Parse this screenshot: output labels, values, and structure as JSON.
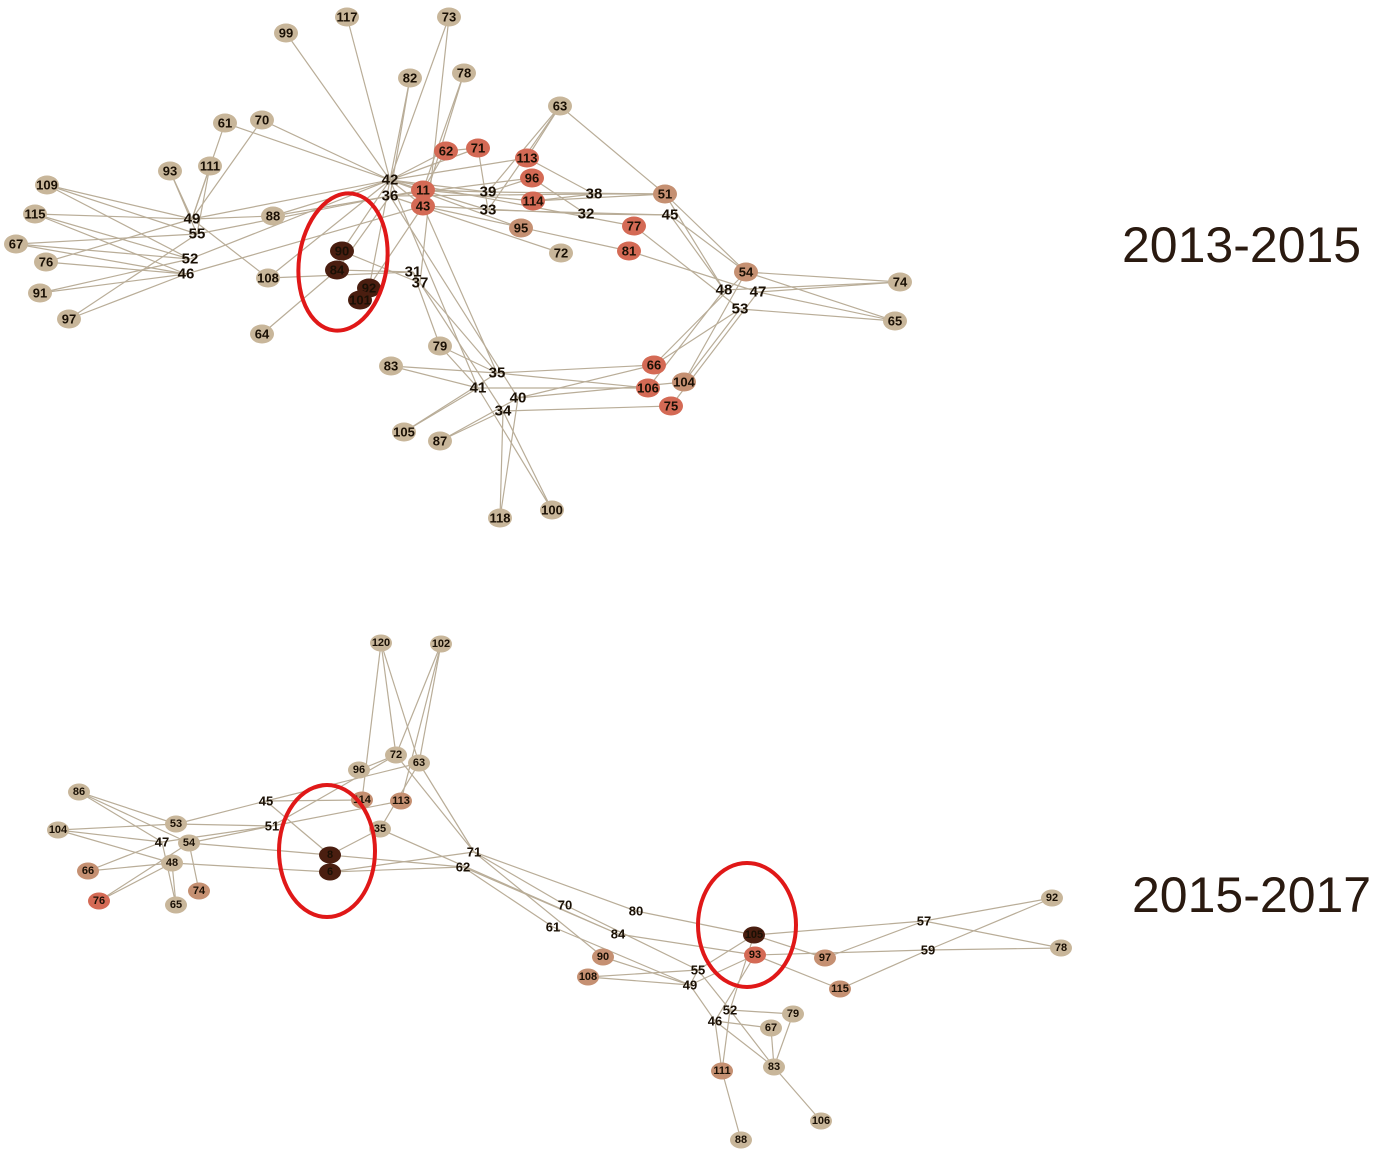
{
  "colors": {
    "edge": "#b9ad98",
    "node_light": "#c8b69a",
    "node_mid": "#c59072",
    "node_red": "#d46a55",
    "node_dark": "#4a1e10",
    "highlight": "#e01818",
    "label": "#2a1a10"
  },
  "panels": [
    {
      "label": "2013-2015",
      "nodes": [
        {
          "id": "117",
          "c": "light"
        },
        {
          "id": "73",
          "c": "light"
        },
        {
          "id": "99",
          "c": "light"
        },
        {
          "id": "82",
          "c": "light"
        },
        {
          "id": "78",
          "c": "light"
        },
        {
          "id": "63",
          "c": "light"
        },
        {
          "id": "61",
          "c": "light"
        },
        {
          "id": "70",
          "c": "light"
        },
        {
          "id": "62",
          "c": "red"
        },
        {
          "id": "71",
          "c": "red"
        },
        {
          "id": "113",
          "c": "red"
        },
        {
          "id": "93",
          "c": "light"
        },
        {
          "id": "111",
          "c": "light"
        },
        {
          "id": "109",
          "c": "light"
        },
        {
          "id": "96",
          "c": "red"
        },
        {
          "id": "42",
          "c": "none"
        },
        {
          "id": "36",
          "c": "none"
        },
        {
          "id": "11",
          "c": "red"
        },
        {
          "id": "43",
          "c": "red"
        },
        {
          "id": "39",
          "c": "none"
        },
        {
          "id": "33",
          "c": "none"
        },
        {
          "id": "114",
          "c": "red"
        },
        {
          "id": "38",
          "c": "none"
        },
        {
          "id": "51",
          "c": "mid"
        },
        {
          "id": "115",
          "c": "light"
        },
        {
          "id": "49",
          "c": "none"
        },
        {
          "id": "55",
          "c": "none"
        },
        {
          "id": "88",
          "c": "light"
        },
        {
          "id": "32",
          "c": "none"
        },
        {
          "id": "45",
          "c": "none"
        },
        {
          "id": "67",
          "c": "light"
        },
        {
          "id": "95",
          "c": "mid"
        },
        {
          "id": "77",
          "c": "red"
        },
        {
          "id": "90",
          "c": "dark"
        },
        {
          "id": "76",
          "c": "light"
        },
        {
          "id": "52",
          "c": "none"
        },
        {
          "id": "72",
          "c": "light"
        },
        {
          "id": "81",
          "c": "red"
        },
        {
          "id": "84",
          "c": "dark"
        },
        {
          "id": "46",
          "c": "none"
        },
        {
          "id": "108",
          "c": "light"
        },
        {
          "id": "54",
          "c": "mid"
        },
        {
          "id": "31",
          "c": "none"
        },
        {
          "id": "37",
          "c": "none"
        },
        {
          "id": "74",
          "c": "light"
        },
        {
          "id": "91",
          "c": "light"
        },
        {
          "id": "92",
          "c": "dark"
        },
        {
          "id": "48",
          "c": "none"
        },
        {
          "id": "47",
          "c": "none"
        },
        {
          "id": "101",
          "c": "dark"
        },
        {
          "id": "53",
          "c": "none"
        },
        {
          "id": "97",
          "c": "light"
        },
        {
          "id": "65",
          "c": "light"
        },
        {
          "id": "64",
          "c": "light"
        },
        {
          "id": "79",
          "c": "light"
        },
        {
          "id": "83",
          "c": "light"
        },
        {
          "id": "66",
          "c": "red"
        },
        {
          "id": "35",
          "c": "none"
        },
        {
          "id": "41",
          "c": "none"
        },
        {
          "id": "106",
          "c": "red"
        },
        {
          "id": "104",
          "c": "mid"
        },
        {
          "id": "40",
          "c": "none"
        },
        {
          "id": "75",
          "c": "red"
        },
        {
          "id": "34",
          "c": "none"
        },
        {
          "id": "105",
          "c": "light"
        },
        {
          "id": "87",
          "c": "light"
        },
        {
          "id": "118",
          "c": "light"
        },
        {
          "id": "100",
          "c": "light"
        }
      ]
    },
    {
      "label": "2015-2017",
      "nodes": [
        {
          "id": "120",
          "c": "light"
        },
        {
          "id": "102",
          "c": "light"
        },
        {
          "id": "72",
          "c": "light"
        },
        {
          "id": "63",
          "c": "light"
        },
        {
          "id": "86",
          "c": "light"
        },
        {
          "id": "96",
          "c": "light"
        },
        {
          "id": "114",
          "c": "mid"
        },
        {
          "id": "113",
          "c": "mid"
        },
        {
          "id": "45",
          "c": "none"
        },
        {
          "id": "53",
          "c": "light"
        },
        {
          "id": "51",
          "c": "none"
        },
        {
          "id": "35",
          "c": "light"
        },
        {
          "id": "104",
          "c": "light"
        },
        {
          "id": "47",
          "c": "none"
        },
        {
          "id": "54",
          "c": "light"
        },
        {
          "id": "71",
          "c": "none"
        },
        {
          "id": "8",
          "c": "dark"
        },
        {
          "id": "62",
          "c": "none"
        },
        {
          "id": "48",
          "c": "light"
        },
        {
          "id": "6",
          "c": "dark"
        },
        {
          "id": "66",
          "c": "mid"
        },
        {
          "id": "74",
          "c": "mid"
        },
        {
          "id": "76",
          "c": "red"
        },
        {
          "id": "65",
          "c": "light"
        },
        {
          "id": "92",
          "c": "light"
        },
        {
          "id": "57",
          "c": "none"
        },
        {
          "id": "70",
          "c": "none"
        },
        {
          "id": "80",
          "c": "none"
        },
        {
          "id": "105",
          "c": "dark"
        },
        {
          "id": "78",
          "c": "light"
        },
        {
          "id": "61",
          "c": "none"
        },
        {
          "id": "84",
          "c": "none"
        },
        {
          "id": "59",
          "c": "none"
        },
        {
          "id": "90",
          "c": "mid"
        },
        {
          "id": "97",
          "c": "mid"
        },
        {
          "id": "93",
          "c": "red"
        },
        {
          "id": "55",
          "c": "none"
        },
        {
          "id": "108",
          "c": "mid"
        },
        {
          "id": "49",
          "c": "none"
        },
        {
          "id": "115",
          "c": "mid"
        },
        {
          "id": "52",
          "c": "none"
        },
        {
          "id": "79",
          "c": "light"
        },
        {
          "id": "46",
          "c": "none"
        },
        {
          "id": "67",
          "c": "light"
        },
        {
          "id": "111",
          "c": "mid"
        },
        {
          "id": "83",
          "c": "light"
        },
        {
          "id": "106",
          "c": "light"
        },
        {
          "id": "88",
          "c": "light"
        }
      ]
    }
  ]
}
